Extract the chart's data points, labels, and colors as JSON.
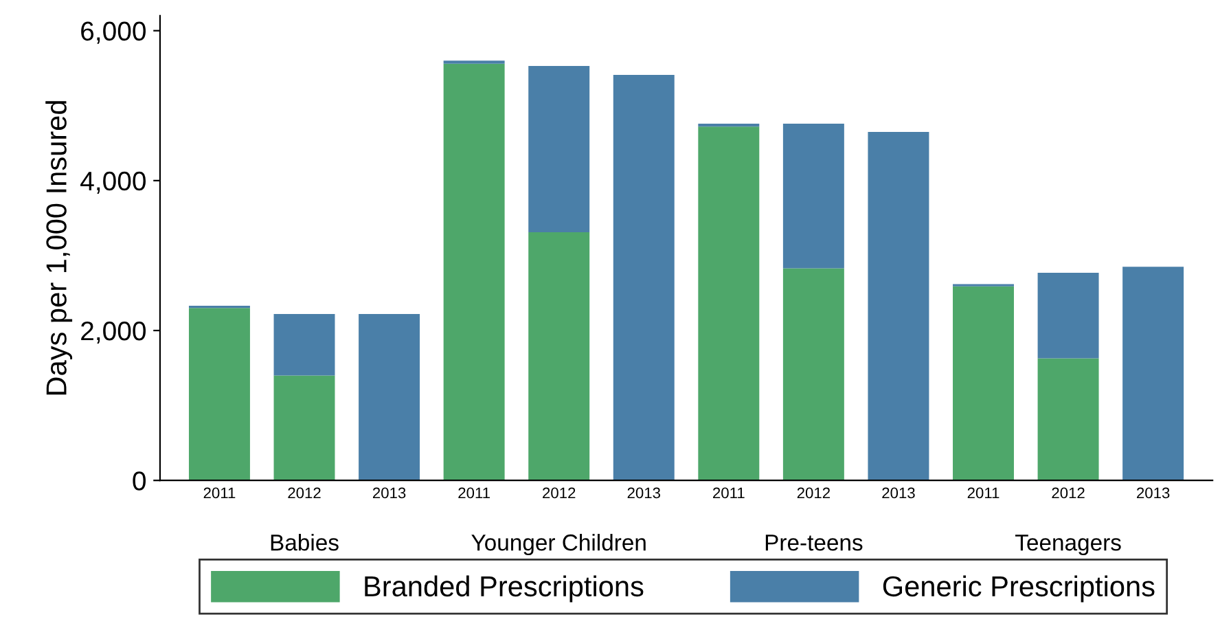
{
  "chart_data": {
    "type": "bar",
    "stacked": true,
    "ylabel": "Days per 1,000 Insured",
    "categories": [
      "2011",
      "2012",
      "2013",
      "2011",
      "2012",
      "2013",
      "2011",
      "2012",
      "2013",
      "2011",
      "2012",
      "2013"
    ],
    "annotations": [
      "Babies",
      "Younger Children",
      "Pre-teens",
      "Teenagers"
    ],
    "series": [
      {
        "name": "Branded Prescriptions",
        "color": "#4ea76a",
        "values": [
          2300,
          1400,
          0,
          5560,
          3310,
          0,
          4720,
          2830,
          0,
          2590,
          1630,
          0
        ]
      },
      {
        "name": "Generic Prescriptions",
        "color": "#4a7fa8",
        "values": [
          30,
          820,
          2220,
          40,
          2220,
          5410,
          40,
          1930,
          4650,
          30,
          1140,
          2850
        ]
      }
    ],
    "ylim": [
      0,
      6200
    ],
    "yticks": [
      0,
      {
        "value": 2000,
        "label": "2,000"
      },
      {
        "value": 4000,
        "label": "4,000"
      },
      {
        "value": 6000,
        "label": "6,000"
      }
    ],
    "grid": false,
    "legend": "bottom"
  }
}
